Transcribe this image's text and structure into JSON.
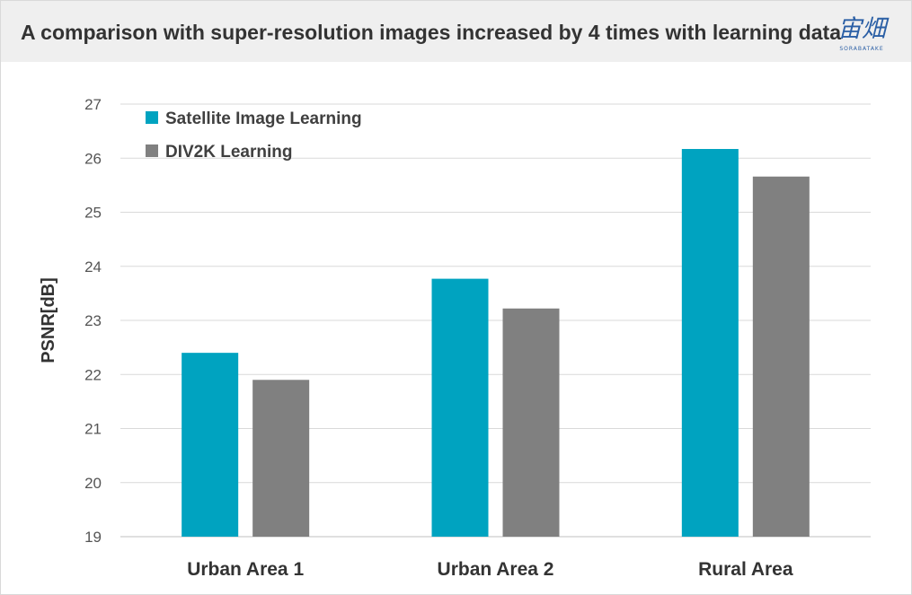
{
  "title": "A comparison with super-resolution images increased by 4 times with learning data",
  "logo": {
    "text": "宙畑",
    "subtext": "SORABATAKE",
    "color": "#2b5fa5"
  },
  "chart_data": {
    "type": "bar",
    "title": "A comparison with super-resolution images increased by 4 times with learning data",
    "xlabel": "",
    "ylabel": "PSNR[dB]",
    "ylim": [
      19,
      27
    ],
    "yticks": [
      19,
      20,
      21,
      22,
      23,
      24,
      25,
      26,
      27
    ],
    "categories": [
      "Urban Area 1",
      "Urban Area 2",
      "Rural Area"
    ],
    "series": [
      {
        "name": "Satellite Image Learning",
        "color": "#00a3c0",
        "values": [
          22.4,
          23.77,
          26.17
        ]
      },
      {
        "name": "DIV2K Learning",
        "color": "#808080",
        "values": [
          21.9,
          23.22,
          25.66
        ]
      }
    ],
    "grid": true,
    "legend_position": "top-left"
  }
}
